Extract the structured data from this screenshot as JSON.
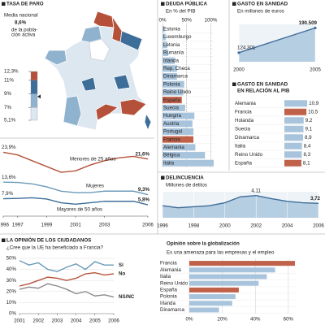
{
  "chart_data": [
    {
      "type": "map",
      "title": "TASA DE PARO",
      "annotation_lines": [
        "Media nacional",
        "de la pobla-",
        "ción activa"
      ],
      "average": {
        "value": 8.6,
        "label": "8,6%"
      },
      "scale_ticks": [
        {
          "value": 12.3,
          "label": "12,3%"
        },
        {
          "value": 11,
          "label": "11%"
        },
        {
          "value": 9,
          "label": "9%"
        },
        {
          "value": 7,
          "label": "7%"
        },
        {
          "value": 5.1,
          "label": "5,1%"
        }
      ],
      "scale_colors": [
        "#b5513a",
        "#3d6d99",
        "#8fb2cf",
        "#dde7f0"
      ]
    },
    {
      "type": "line",
      "x": [
        1996,
        1997,
        1998,
        1999,
        2000,
        2001,
        2002,
        2003,
        2004,
        2005,
        2006
      ],
      "xlim": [
        1996,
        2006
      ],
      "xticks": [
        1996,
        1997,
        1999,
        2001,
        2003,
        2006
      ],
      "ylim": [
        3,
        26
      ],
      "series": [
        {
          "name": "Menores de 25 años",
          "color": "#b5513a",
          "values": [
            23.9,
            23,
            21,
            19,
            17,
            17.5,
            19.5,
            21,
            22,
            22.5,
            21.6
          ],
          "value_labels": [
            "23,9%",
            null,
            null,
            null,
            null,
            null,
            null,
            null,
            null,
            null,
            "21,6%"
          ]
        },
        {
          "name": "Mujeres",
          "color": "#6b9bb8",
          "values": [
            13.6,
            13.5,
            13,
            12,
            10.5,
            10,
            10,
            10.5,
            10.5,
            10.5,
            9.3
          ],
          "value_labels": [
            "13,6%",
            null,
            null,
            null,
            null,
            null,
            null,
            null,
            null,
            null,
            "9,3%"
          ]
        },
        {
          "name": "Mayores de 50 años",
          "color": "#3d6d99",
          "values": [
            7.9,
            8,
            8.2,
            7.8,
            6.5,
            6,
            6.5,
            7,
            7,
            7,
            5.8
          ],
          "value_labels": [
            "7,9%",
            null,
            null,
            null,
            null,
            null,
            null,
            null,
            null,
            null,
            "5,8%"
          ]
        }
      ]
    },
    {
      "type": "hbar",
      "title": "DEUDA PÚBLICA",
      "subtitle": "En % del PIB",
      "categories": [
        "Estonia",
        "Luxemburgo",
        "Letonia",
        "Rumanía",
        "Irlanda",
        "Rep. Checa",
        "Dinamarca",
        "Polonia",
        "Reino Unido",
        "España",
        "Suecia",
        "Hungría",
        "Austria",
        "Portugal",
        "Francia",
        "Alemania",
        "Bélgica",
        "Italia"
      ],
      "values": [
        4,
        7,
        10,
        12,
        25,
        30,
        30,
        45,
        43,
        40,
        47,
        66,
        62,
        64,
        64,
        68,
        88,
        106
      ],
      "colors": [
        "#a8c4dc",
        "#a8c4dc",
        "#a8c4dc",
        "#a8c4dc",
        "#a8c4dc",
        "#a8c4dc",
        "#a8c4dc",
        "#a8c4dc",
        "#a8c4dc",
        "#c0614a",
        "#a8c4dc",
        "#a8c4dc",
        "#a8c4dc",
        "#a8c4dc",
        "#c0614a",
        "#a8c4dc",
        "#a8c4dc",
        "#a8c4dc"
      ],
      "xlim": [
        0,
        106
      ],
      "xticks": [
        {
          "value": 0,
          "label": "0%"
        },
        {
          "value": 50,
          "label": "50%"
        },
        {
          "value": 100,
          "label": "100%"
        }
      ]
    },
    {
      "type": "area",
      "title": "GASTO EN SANIDAD",
      "subtitle": "En millones de euros",
      "x": [
        2000,
        2005
      ],
      "xlim": [
        2000,
        2005
      ],
      "xticks": [
        2000,
        2005
      ],
      "ylim": [
        100000,
        200000
      ],
      "series": [
        {
          "color": "#3d6d99",
          "values": [
            124301,
            190509
          ],
          "value_labels": [
            "124.301",
            "190.509"
          ]
        }
      ]
    },
    {
      "type": "hbar",
      "title_lines": [
        "GASTO EN SANIDAD",
        "EN RELACIÓN AL PIB"
      ],
      "categories": [
        "Alemania",
        "Francia",
        "Holanda",
        "Suecia",
        "Dinamarca",
        "Italia",
        "Reino Unido",
        "España"
      ],
      "values": [
        10.9,
        10.5,
        9.2,
        9.1,
        8.9,
        8.4,
        8.3,
        8.1
      ],
      "value_labels": [
        "10,9",
        "10,5",
        "9,2",
        "9,1",
        "8,9",
        "8,4",
        "8,3",
        "8,1"
      ],
      "colors": [
        "#a8c4dc",
        "#c0614a",
        "#a8c4dc",
        "#a8c4dc",
        "#a8c4dc",
        "#a8c4dc",
        "#a8c4dc",
        "#c0614a"
      ],
      "xlim": [
        0,
        12
      ]
    },
    {
      "type": "area",
      "title": "DELINCUENCIA",
      "subtitle": "Millones de delitos",
      "x": [
        1996,
        1997,
        1998,
        1999,
        2000,
        2001,
        2002,
        2003,
        2004,
        2005,
        2006
      ],
      "xlim": [
        1996,
        2006
      ],
      "xticks": [
        1996,
        1998,
        2000,
        2002,
        2004,
        2006
      ],
      "ylim": [
        3,
        4.3
      ],
      "series": [
        {
          "color": "#3d6d99",
          "values": [
            3.6,
            3.5,
            3.55,
            3.6,
            3.75,
            4.05,
            4.11,
            3.95,
            3.82,
            3.75,
            3.72
          ],
          "value_labels": [
            null,
            null,
            null,
            null,
            null,
            null,
            "4,11",
            null,
            null,
            null,
            "3,72"
          ]
        }
      ]
    },
    {
      "type": "line",
      "title": "LA OPINIÓN DE LOS CIUDADANOS",
      "subtitle": "¿Cree que la UE ha beneficiado a Francia?",
      "x": [
        2001,
        2001.5,
        2002,
        2002.5,
        2003,
        2003.5,
        2004,
        2004.5,
        2005,
        2005.5,
        2006
      ],
      "xlim": [
        2001,
        2006
      ],
      "xticks": [
        2001,
        2002,
        2003,
        2004,
        2005,
        2006
      ],
      "ylim": [
        0,
        50
      ],
      "yticks": [
        {
          "value": 0,
          "label": "0%"
        },
        {
          "value": 10,
          "label": "10%"
        },
        {
          "value": 20,
          "label": "20%"
        },
        {
          "value": 30,
          "label": "30%"
        },
        {
          "value": 40,
          "label": "40%"
        },
        {
          "value": 50,
          "label": "50%"
        }
      ],
      "grid": true,
      "series": [
        {
          "name": "Sí",
          "color": "#6b9bb8",
          "values": [
            48,
            44,
            46,
            40,
            38,
            42,
            45,
            40,
            47,
            44,
            44
          ]
        },
        {
          "name": "No",
          "color": "#b5513a",
          "values": [
            25,
            27,
            30,
            33,
            32,
            30,
            32,
            36,
            37,
            35,
            36
          ]
        },
        {
          "name": "NS/NC",
          "color": "#8a8a8a",
          "values": [
            22,
            24,
            23,
            27,
            25,
            22,
            18,
            20,
            16,
            17,
            15
          ]
        }
      ]
    },
    {
      "type": "hbar",
      "title": "Opinión sobre la globalización",
      "subtitle": "Es una amenaza para las empresas y el empleo",
      "categories": [
        "Francia",
        "Alemania",
        "Italia",
        "Reino Unido",
        "España",
        "Polonia",
        "Irlanda",
        "Dinamarca"
      ],
      "values": [
        64,
        52,
        47,
        42,
        30,
        28,
        26,
        18
      ],
      "colors": [
        "#c0614a",
        "#a8c4dc",
        "#a8c4dc",
        "#a8c4dc",
        "#c0614a",
        "#a8c4dc",
        "#a8c4dc",
        "#a8c4dc"
      ],
      "xlim": [
        0,
        65
      ],
      "xticks": [
        {
          "value": 0,
          "label": "0%"
        },
        {
          "value": 20,
          "label": "20%"
        },
        {
          "value": 40,
          "label": "40%"
        },
        {
          "value": 60,
          "label": "60%"
        }
      ],
      "grid": true
    }
  ]
}
